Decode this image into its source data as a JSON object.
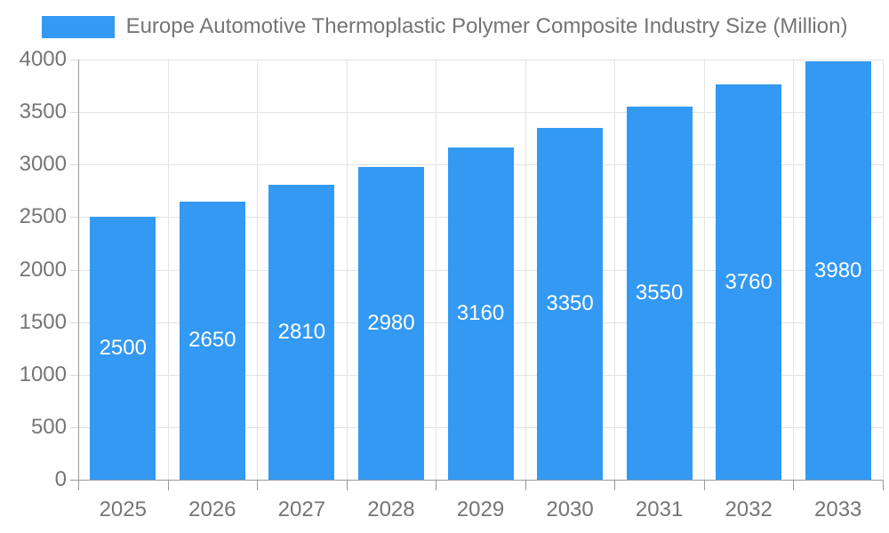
{
  "chart_data": {
    "type": "bar",
    "title": "Europe Automotive Thermoplastic Polymer Composite Industry Size (Million)",
    "categories": [
      "2025",
      "2026",
      "2027",
      "2028",
      "2029",
      "2030",
      "2031",
      "2032",
      "2033"
    ],
    "values": [
      2500,
      2650,
      2810,
      2980,
      3160,
      3350,
      3550,
      3760,
      3980
    ],
    "xlabel": "",
    "ylabel": "",
    "ylim": [
      0,
      4000
    ],
    "yticks": [
      0,
      500,
      1000,
      1500,
      2000,
      2500,
      3000,
      3500,
      4000
    ],
    "grid": true,
    "legend_position": "top",
    "colors": {
      "bar": "#3399f3",
      "bar_label": "#ffffff",
      "axis_text": "#757575",
      "grid_line": "#e3e3e3",
      "axis_line": "#999999",
      "tick": "#d9d9d9"
    }
  }
}
